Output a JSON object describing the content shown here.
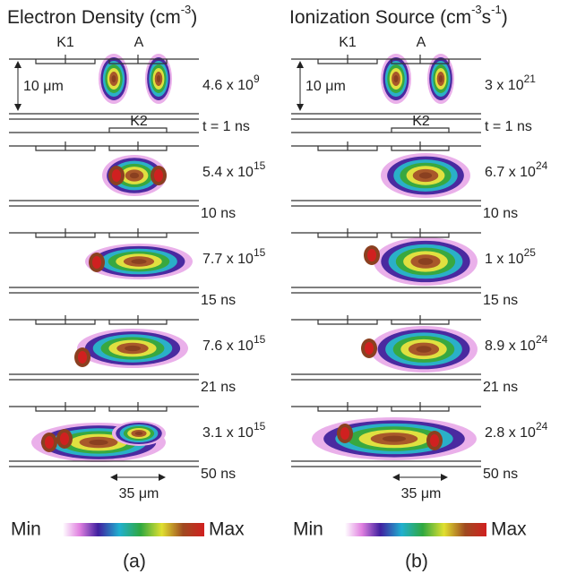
{
  "panels": [
    {
      "title": [
        {
          "text": "Electron Density (cm"
        },
        {
          "text": "-3",
          "sup": true
        },
        {
          "text": ")"
        }
      ],
      "electrodes": {
        "k1": "K1",
        "a": "A",
        "k2": "K2"
      },
      "height_label": "10 μm",
      "frames": [
        {
          "peak": "4.6 x 10",
          "peak_exp": "9",
          "time": "t = 1 ns"
        },
        {
          "peak": "5.4 x 10",
          "peak_exp": "15",
          "time": "10 ns"
        },
        {
          "peak": "7.7 x 10",
          "peak_exp": "15",
          "time": "15 ns"
        },
        {
          "peak": "7.6 x 10",
          "peak_exp": "15",
          "time": "21 ns"
        },
        {
          "peak": "3.1 x 10",
          "peak_exp": "15",
          "time": "50 ns"
        }
      ],
      "width_label": "35 μm",
      "colorbar": {
        "min": "Min",
        "max": "Max"
      },
      "label": "(a)"
    },
    {
      "title": [
        {
          "text": "Ionization Source (cm"
        },
        {
          "text": "-3",
          "sup": true
        },
        {
          "text": "s"
        },
        {
          "text": "-1",
          "sup": true
        },
        {
          "text": ")"
        }
      ],
      "electrodes": {
        "k1": "K1",
        "a": "A",
        "k2": "K2"
      },
      "height_label": "10 μm",
      "frames": [
        {
          "peak": "3 x 10",
          "peak_exp": "21",
          "time": "t = 1 ns"
        },
        {
          "peak": "6.7 x 10",
          "peak_exp": "24",
          "time": "10 ns"
        },
        {
          "peak": "1 x 10",
          "peak_exp": "25",
          "time": "15 ns"
        },
        {
          "peak": "8.9 x 10",
          "peak_exp": "24",
          "time": "21 ns"
        },
        {
          "peak": "2.8 x 10",
          "peak_exp": "24",
          "time": "50 ns"
        }
      ],
      "width_label": "35 μm",
      "colorbar": {
        "min": "Min",
        "max": "Max"
      },
      "label": "(b)"
    }
  ]
}
